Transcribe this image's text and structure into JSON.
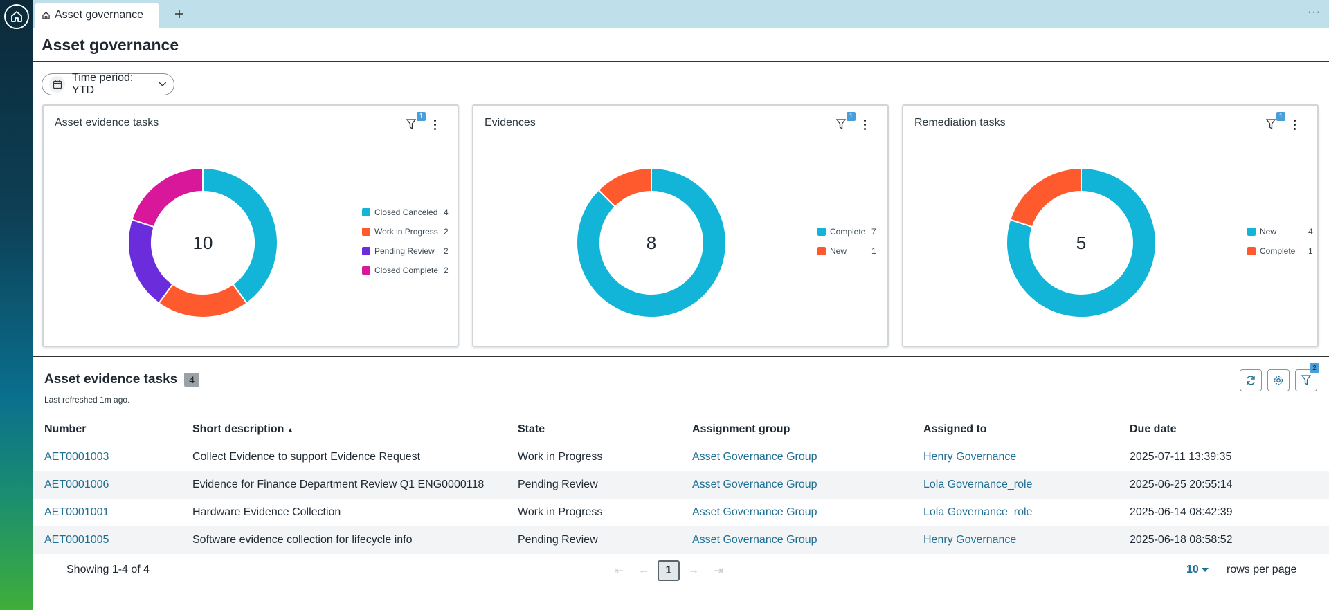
{
  "tab": {
    "label": "Asset governance"
  },
  "page": {
    "title": "Asset governance"
  },
  "filter": {
    "time_period": "Time period: YTD"
  },
  "cards": [
    {
      "title": "Asset evidence tasks",
      "filter_badge": "1",
      "total": "10",
      "chart_data": {
        "type": "pie",
        "categories": [
          "Closed Canceled",
          "Work in Progress",
          "Pending Review",
          "Closed Complete"
        ],
        "values": [
          4,
          2,
          2,
          2
        ],
        "colors": [
          "#12b5d8",
          "#ff5a2e",
          "#6b2ddb",
          "#d8179a"
        ]
      },
      "legend": [
        {
          "label": "Closed Canceled",
          "count": "4"
        },
        {
          "label": "Work in Progress",
          "count": "2"
        },
        {
          "label": "Pending Review",
          "count": "2"
        },
        {
          "label": "Closed Complete",
          "count": "2"
        }
      ]
    },
    {
      "title": "Evidences",
      "filter_badge": "1",
      "total": "8",
      "chart_data": {
        "type": "pie",
        "categories": [
          "Complete",
          "New"
        ],
        "values": [
          7,
          1
        ],
        "colors": [
          "#12b5d8",
          "#ff5a2e"
        ]
      },
      "legend": [
        {
          "label": "Complete",
          "count": "7"
        },
        {
          "label": "New",
          "count": "1"
        }
      ]
    },
    {
      "title": "Remediation tasks",
      "filter_badge": "1",
      "total": "5",
      "chart_data": {
        "type": "pie",
        "categories": [
          "New",
          "Complete"
        ],
        "values": [
          4,
          1
        ],
        "colors": [
          "#12b5d8",
          "#ff5a2e"
        ]
      },
      "legend": [
        {
          "label": "New",
          "count": "4"
        },
        {
          "label": "Complete",
          "count": "1"
        }
      ]
    }
  ],
  "list": {
    "title": "Asset evidence tasks",
    "count": "4",
    "last_refreshed": "Last refreshed 1m ago.",
    "filter_badge": "2",
    "columns": [
      "Number",
      "Short description",
      "State",
      "Assignment group",
      "Assigned to",
      "Due date"
    ],
    "rows": [
      [
        "AET0001003",
        "Collect Evidence to support Evidence Request",
        "Work in Progress",
        "Asset Governance Group",
        "Henry Governance",
        "2025-07-11 13:39:35"
      ],
      [
        "AET0001006",
        "Evidence for Finance Department Review Q1 ENG0000118",
        "Pending Review",
        "Asset Governance Group",
        "Lola Governance_role",
        "2025-06-25 20:55:14"
      ],
      [
        "AET0001001",
        "Hardware Evidence Collection",
        "Work in Progress",
        "Asset Governance Group",
        "Lola Governance_role",
        "2025-06-14 08:42:39"
      ],
      [
        "AET0001005",
        "Software evidence collection for lifecycle info",
        "Pending Review",
        "Asset Governance Group",
        "Henry Governance",
        "2025-06-18 08:58:52"
      ]
    ]
  },
  "pager": {
    "showing": "Showing 1-4 of 4",
    "current_page": "1",
    "rows_per_page": "10",
    "rows_label": "rows per page"
  }
}
